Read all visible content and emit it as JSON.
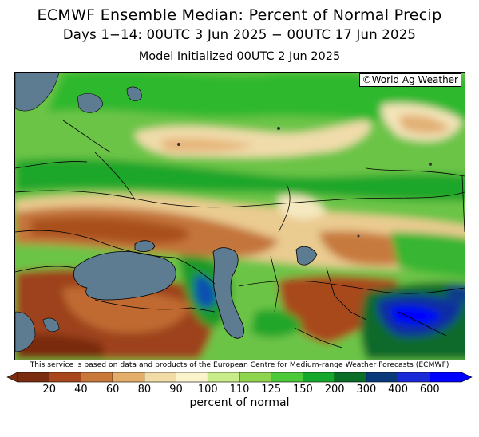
{
  "title": "ECMWF Ensemble Median: Percent of Normal Precip",
  "subtitle": "Days 1−14: 00UTC 3 Jun 2025 − 00UTC 17 Jun 2025",
  "init_line": "Model Initialized 00UTC 2 Jun 2025",
  "credit": "©World Ag Weather",
  "disclaimer": "This service is based on data and products of the European Centre for Medium-range Weather Forecasts (ECMWF)",
  "colorbar": {
    "unit_label": "percent of normal",
    "ticks": [
      "20",
      "40",
      "60",
      "80",
      "90",
      "100",
      "110",
      "125",
      "150",
      "200",
      "300",
      "400",
      "600"
    ],
    "colors": [
      "#7a2c10",
      "#a8461c",
      "#c8793a",
      "#e3ad6a",
      "#f2dca6",
      "#fbf3cc",
      "#c9ec8a",
      "#8fd44f",
      "#4cc83a",
      "#16a82a",
      "#0a6e28",
      "#0a3a7a",
      "#1a28d8",
      "#0000ff"
    ]
  },
  "map": {
    "region": "Eastern Europe / Caspian / Central Asia",
    "water_color": "#5d7c92",
    "features": [
      "Black Sea",
      "Caspian Sea",
      "Aral Sea"
    ]
  }
}
